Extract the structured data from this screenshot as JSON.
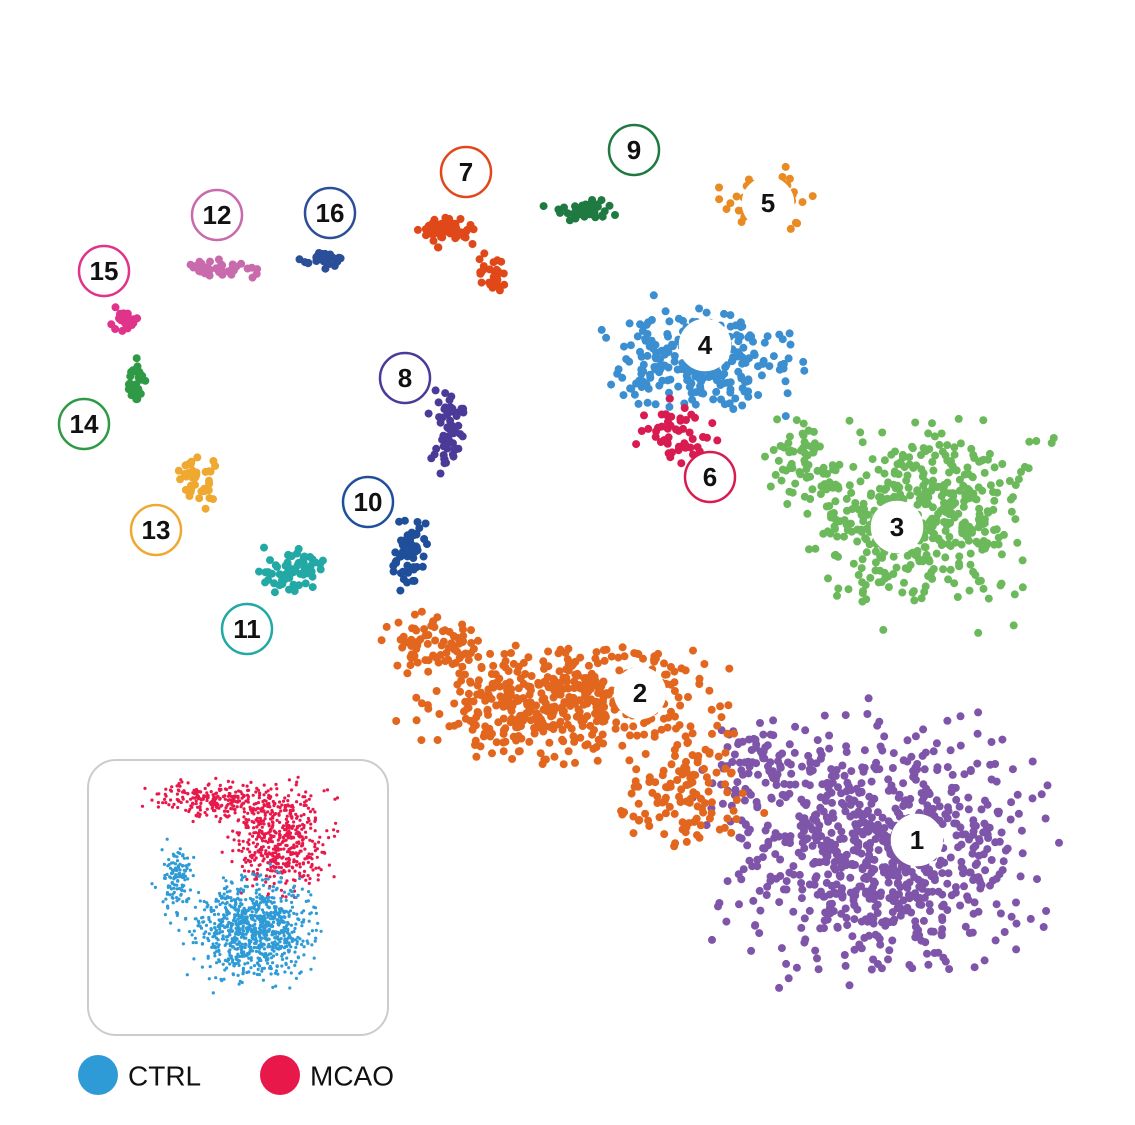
{
  "clusters": [
    {
      "label": "1",
      "color": "#7e55a8"
    },
    {
      "label": "2",
      "color": "#e2661e"
    },
    {
      "label": "3",
      "color": "#6cb95c"
    },
    {
      "label": "4",
      "color": "#3b8fd0"
    },
    {
      "label": "5",
      "color": "#e98a22"
    },
    {
      "label": "6",
      "color": "#d81b50"
    },
    {
      "label": "7",
      "color": "#e0481a"
    },
    {
      "label": "8",
      "color": "#4b3a98"
    },
    {
      "label": "9",
      "color": "#1e7a40"
    },
    {
      "label": "10",
      "color": "#1f4f9a"
    },
    {
      "label": "11",
      "color": "#22a9a5"
    },
    {
      "label": "12",
      "color": "#c86aac"
    },
    {
      "label": "13",
      "color": "#efa830"
    },
    {
      "label": "14",
      "color": "#2e9a45"
    },
    {
      "label": "15",
      "color": "#e0338a"
    },
    {
      "label": "16",
      "color": "#2a4f98"
    }
  ],
  "legend": [
    {
      "label": "CTRL",
      "color": "#2e9ad6"
    },
    {
      "label": "MCAO",
      "color": "#e8194a"
    }
  ]
}
